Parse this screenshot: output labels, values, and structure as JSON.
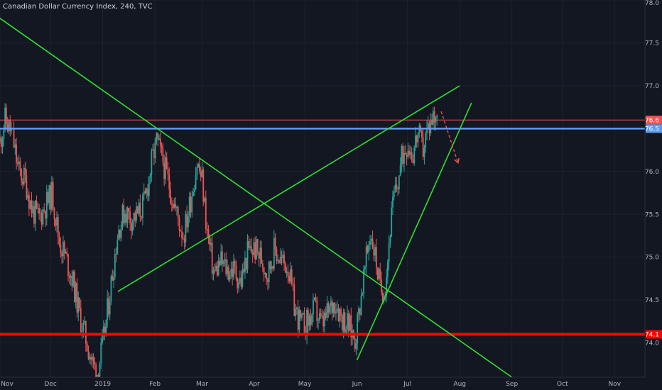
{
  "header": {
    "title": "Canadian Dollar Currency Index, 240, TVC"
  },
  "chart_data": {
    "type": "candlestick",
    "title": "Canadian Dollar Currency Index, 240, TVC",
    "xlabel": "",
    "ylabel": "",
    "ylim": [
      73.6,
      78.0
    ],
    "y_ticks": [
      74.0,
      74.5,
      75.0,
      75.5,
      76.0,
      76.5,
      77.0,
      77.5,
      78.0
    ],
    "y_tick_labels": [
      "74.0",
      "74.5",
      "75.0",
      "75.5",
      "76.0",
      "76.5",
      "77.0",
      "77.5",
      "78.0"
    ],
    "x_ticks": [
      "Nov",
      "Dec",
      "2019",
      "Feb",
      "Mar",
      "Apr",
      "May",
      "Jun",
      "Jul",
      "Aug",
      "Sep",
      "Oct",
      "Nov"
    ],
    "x_tick_dates": [
      "2018-11-01",
      "2018-12-01",
      "2019-01-01",
      "2019-02-01",
      "2019-03-01",
      "2019-04-01",
      "2019-05-01",
      "2019-06-01",
      "2019-07-01",
      "2019-08-01",
      "2019-09-01",
      "2019-10-01",
      "2019-11-01"
    ],
    "xlim": [
      "2018-11-01",
      "2019-11-19"
    ],
    "grid": true,
    "up_color": "#26a69a",
    "down_color": "#ef5350",
    "price_path": [
      [
        "2018-11-01",
        76.35
      ],
      [
        "2018-11-04",
        76.6
      ],
      [
        "2018-11-08",
        76.45
      ],
      [
        "2018-11-12",
        76.0
      ],
      [
        "2018-11-16",
        75.9
      ],
      [
        "2018-11-20",
        75.55
      ],
      [
        "2018-11-24",
        75.45
      ],
      [
        "2018-11-28",
        75.6
      ],
      [
        "2018-12-02",
        75.75
      ],
      [
        "2018-12-06",
        75.2
      ],
      [
        "2018-12-10",
        75.0
      ],
      [
        "2018-12-14",
        74.75
      ],
      [
        "2018-12-18",
        74.35
      ],
      [
        "2018-12-22",
        74.05
      ],
      [
        "2018-12-26",
        73.75
      ],
      [
        "2018-12-29",
        73.65
      ],
      [
        "2019-01-02",
        74.1
      ],
      [
        "2019-01-06",
        74.7
      ],
      [
        "2019-01-10",
        75.3
      ],
      [
        "2019-01-14",
        75.55
      ],
      [
        "2019-01-18",
        75.45
      ],
      [
        "2019-01-22",
        75.5
      ],
      [
        "2019-01-26",
        75.65
      ],
      [
        "2019-01-30",
        76.1
      ],
      [
        "2019-02-02",
        76.35
      ],
      [
        "2019-02-06",
        76.1
      ],
      [
        "2019-02-10",
        75.8
      ],
      [
        "2019-02-14",
        75.5
      ],
      [
        "2019-02-18",
        75.25
      ],
      [
        "2019-02-22",
        75.65
      ],
      [
        "2019-02-26",
        76.1
      ],
      [
        "2019-03-01",
        75.9
      ],
      [
        "2019-03-04",
        75.3
      ],
      [
        "2019-03-08",
        74.8
      ],
      [
        "2019-03-12",
        74.95
      ],
      [
        "2019-03-16",
        74.85
      ],
      [
        "2019-03-20",
        74.85
      ],
      [
        "2019-03-24",
        74.7
      ],
      [
        "2019-03-28",
        75.05
      ],
      [
        "2019-04-01",
        75.1
      ],
      [
        "2019-04-05",
        75.0
      ],
      [
        "2019-04-09",
        74.8
      ],
      [
        "2019-04-13",
        75.1
      ],
      [
        "2019-04-17",
        74.95
      ],
      [
        "2019-04-21",
        74.9
      ],
      [
        "2019-04-25",
        74.4
      ],
      [
        "2019-04-29",
        74.2
      ],
      [
        "2019-05-03",
        74.25
      ],
      [
        "2019-05-07",
        74.4
      ],
      [
        "2019-05-11",
        74.2
      ],
      [
        "2019-05-15",
        74.35
      ],
      [
        "2019-05-19",
        74.5
      ],
      [
        "2019-05-23",
        74.3
      ],
      [
        "2019-05-27",
        74.2
      ],
      [
        "2019-05-31",
        74.05
      ],
      [
        "2019-06-03",
        74.5
      ],
      [
        "2019-06-06",
        74.9
      ],
      [
        "2019-06-09",
        75.3
      ],
      [
        "2019-06-12",
        75.0
      ],
      [
        "2019-06-15",
        74.6
      ],
      [
        "2019-06-18",
        74.7
      ],
      [
        "2019-06-21",
        75.4
      ],
      [
        "2019-06-23",
        75.7
      ],
      [
        "2019-06-25",
        75.85
      ],
      [
        "2019-06-28",
        76.2
      ],
      [
        "2019-07-01",
        76.35
      ],
      [
        "2019-07-04",
        76.2
      ],
      [
        "2019-07-07",
        76.45
      ],
      [
        "2019-07-10",
        76.25
      ],
      [
        "2019-07-13",
        76.5
      ],
      [
        "2019-07-16",
        76.65
      ],
      [
        "2019-07-19",
        76.7
      ]
    ],
    "horizontal_levels": [
      {
        "value": 76.6,
        "label": "76.6",
        "color": "#ef5350"
      },
      {
        "value": 76.5,
        "label": "76.5",
        "color": "#5b9cf6"
      },
      {
        "value": 74.1,
        "label": "74.1",
        "color": "#ff0000"
      }
    ],
    "trend_lines": [
      {
        "from": [
          "2018-10-31",
          77.8
        ],
        "to": [
          "2019-09-01",
          73.6
        ],
        "color": "#2fe02f"
      },
      {
        "from": [
          "2019-01-10",
          74.6
        ],
        "to": [
          "2019-08-01",
          77.0
        ],
        "color": "#2fe02f"
      },
      {
        "from": [
          "2019-06-01",
          73.8
        ],
        "to": [
          "2019-08-08",
          76.8
        ],
        "color": "#2fe02f"
      }
    ],
    "projection": {
      "from": [
        "2019-07-21",
        76.7
      ],
      "to": [
        "2019-07-31",
        76.1
      ],
      "color": "#ef5350"
    }
  }
}
